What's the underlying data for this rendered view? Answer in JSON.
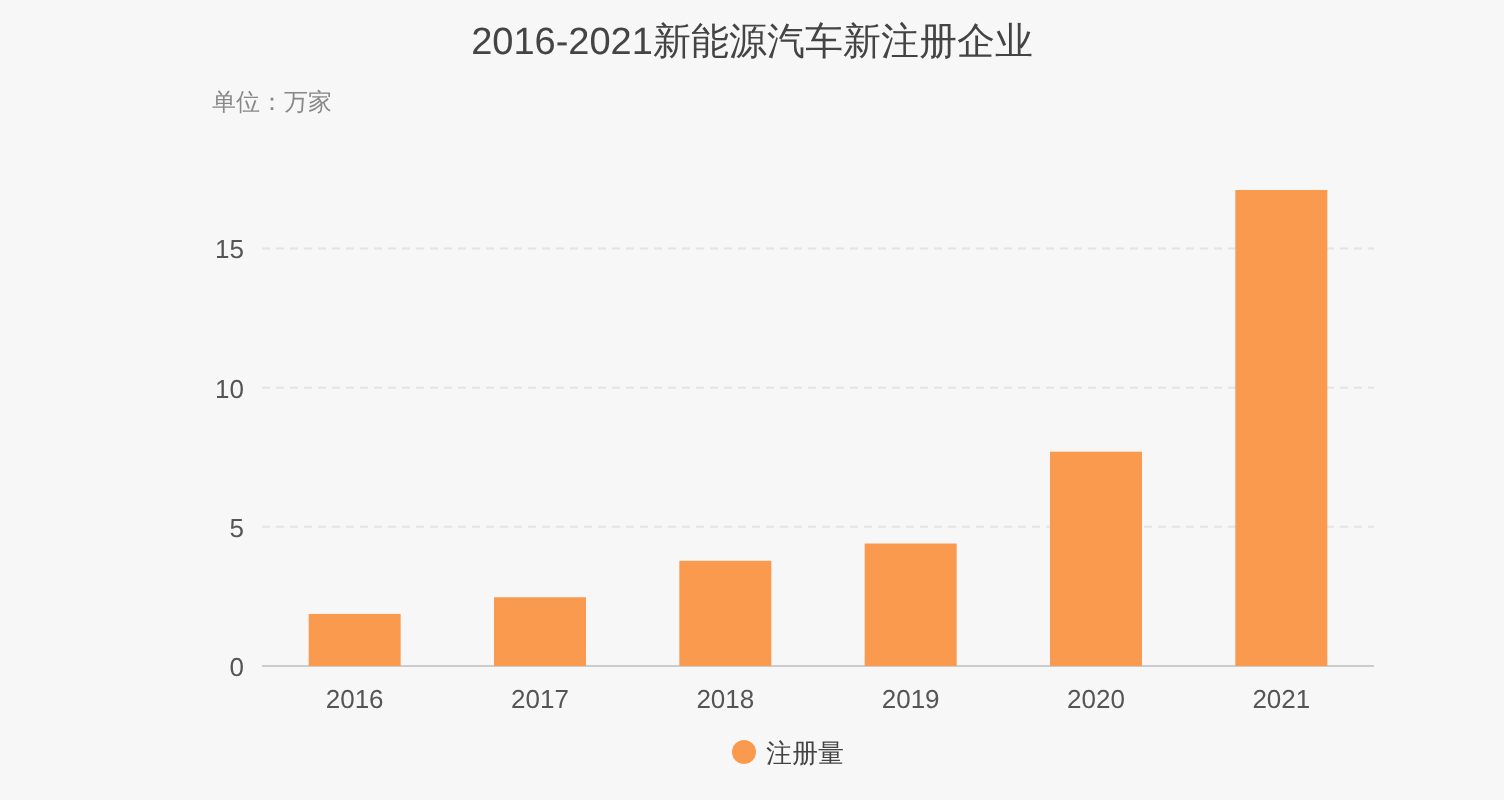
{
  "chart_data": {
    "type": "bar",
    "title": "2016-2021新能源汽车新注册企业",
    "subtitle": "单位：万家",
    "categories": [
      "2016",
      "2017",
      "2018",
      "2019",
      "2020",
      "2021"
    ],
    "series": [
      {
        "name": "注册量",
        "color": "#fa9a4e",
        "values": [
          1.87,
          2.47,
          3.78,
          4.4,
          7.7,
          17.1
        ]
      }
    ],
    "ylim": [
      0,
      17.1
    ],
    "yticks": [
      0,
      5,
      10,
      15
    ],
    "grid": "y",
    "legend": "bottom"
  }
}
